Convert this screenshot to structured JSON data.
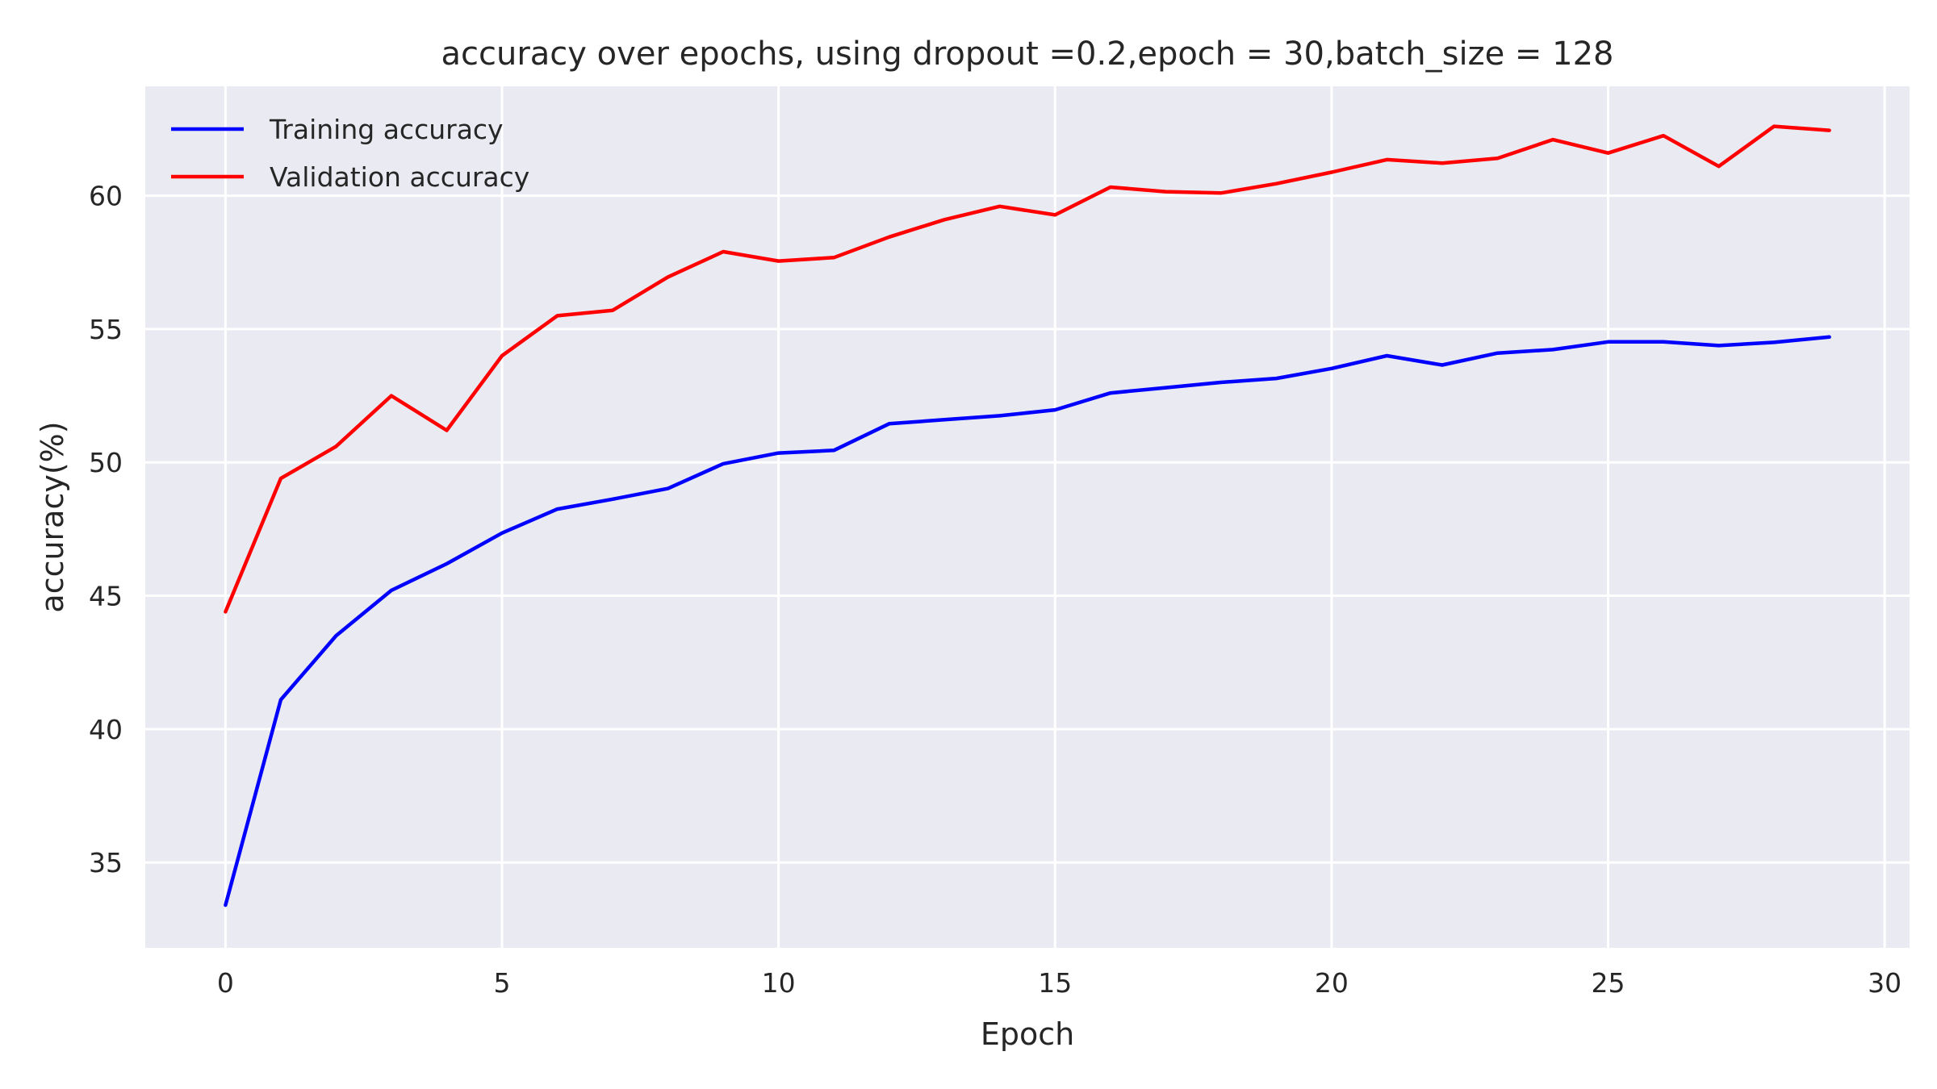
{
  "chart_data": {
    "type": "line",
    "title": "accuracy over epochs, using dropout =0.2,epoch = 30,batch_size = 128",
    "xlabel": "Epoch",
    "ylabel": "accuracy(%)",
    "xlim": [
      -1.45,
      30.45
    ],
    "ylim": [
      31.8,
      64.1
    ],
    "xticks": [
      0,
      5,
      10,
      15,
      20,
      25,
      30
    ],
    "yticks": [
      35,
      40,
      45,
      50,
      55,
      60
    ],
    "grid": true,
    "legend_position": "top-left",
    "background_color": "#eaeaf2",
    "x": [
      0,
      1,
      2,
      3,
      4,
      5,
      6,
      7,
      8,
      9,
      10,
      11,
      12,
      13,
      14,
      15,
      16,
      17,
      18,
      19,
      20,
      21,
      22,
      23,
      24,
      25,
      26,
      27,
      28,
      29
    ],
    "series": [
      {
        "name": "Training accuracy",
        "color": "#0000ff",
        "values": [
          33.4,
          41.1,
          43.5,
          45.2,
          46.2,
          47.35,
          48.25,
          48.62,
          49.02,
          49.95,
          50.35,
          50.45,
          51.45,
          51.6,
          51.75,
          51.97,
          52.6,
          52.8,
          53.0,
          53.15,
          53.52,
          54.0,
          53.65,
          54.1,
          54.23,
          54.52,
          54.52,
          54.38,
          54.5,
          54.7
        ]
      },
      {
        "name": "Validation accuracy",
        "color": "#ff0000",
        "values": [
          44.4,
          49.4,
          50.6,
          52.5,
          51.2,
          54.0,
          55.5,
          55.7,
          56.95,
          57.9,
          57.55,
          57.68,
          58.45,
          59.1,
          59.6,
          59.28,
          60.32,
          60.15,
          60.1,
          60.45,
          60.88,
          61.35,
          61.22,
          61.4,
          62.1,
          61.6,
          62.25,
          61.1,
          62.6,
          62.45
        ]
      }
    ]
  }
}
